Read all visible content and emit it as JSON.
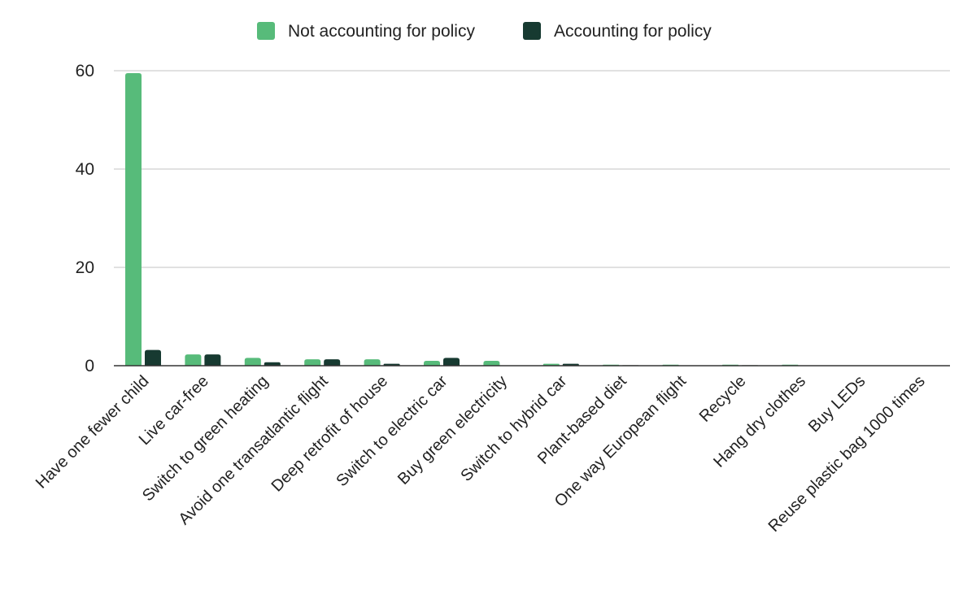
{
  "chart_data": {
    "type": "bar",
    "title": "",
    "xlabel": "",
    "ylabel": "",
    "ylim": [
      0,
      60
    ],
    "yticks": [
      0,
      20,
      40,
      60
    ],
    "grid": true,
    "legend_position": "top-center",
    "categories": [
      "Have one fewer child",
      "Live car-free",
      "Switch to green heating",
      "Avoid one transatlantic flight",
      "Deep retrofit of house",
      "Switch to electric car",
      "Buy green electricity",
      "Switch to hybrid car",
      "Plant-based diet",
      "One way European flight",
      "Recycle",
      "Hang dry clothes",
      "Buy LEDs",
      "Reuse plastic bag 1000 times"
    ],
    "series": [
      {
        "name": "Not accounting for policy",
        "color": "#57bb7a",
        "values": [
          59.5,
          2.3,
          1.6,
          1.3,
          1.3,
          1.0,
          1.0,
          0.4,
          0.2,
          0.2,
          0.2,
          0.2,
          0.05,
          0.02
        ]
      },
      {
        "name": "Accounting for policy",
        "color": "#173a31",
        "values": [
          3.2,
          2.3,
          0.7,
          1.3,
          0.4,
          1.6,
          0.0,
          0.4,
          0.1,
          0.0,
          0.1,
          0.0,
          0.0,
          0.0
        ]
      }
    ]
  }
}
